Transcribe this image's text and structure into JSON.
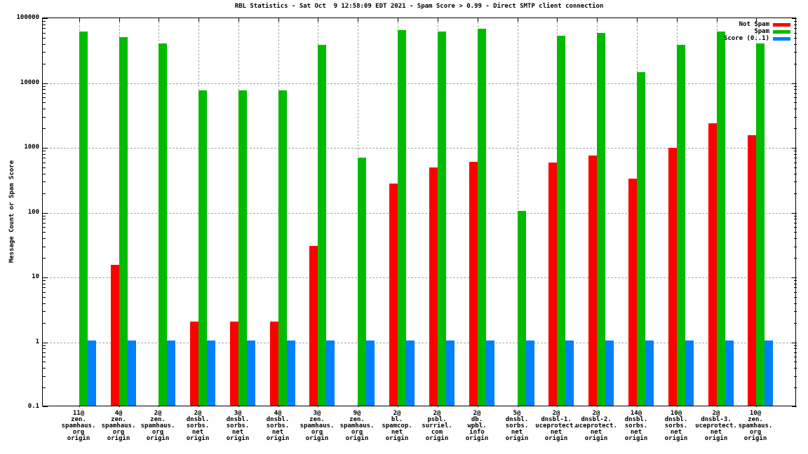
{
  "window": {
    "background": "#ffffff"
  },
  "chart_data": {
    "type": "bar",
    "title": "RBL Statistics - Sat Oct  9 12:58:09 EDT 2021 - Spam Score > 0.99 - Direct SMTP client connection",
    "ylabel": "Message Count or Spam Score",
    "xlabel": "",
    "y_scale": "log10",
    "ylim": [
      0.1,
      100000
    ],
    "ytick_labels": [
      "100000",
      "10000",
      "1000",
      "100",
      "10",
      "1",
      "0.1"
    ],
    "grid": true,
    "legend_position": "top-right-inside",
    "categories": [
      "11@ zen.spamhaus.org origin",
      "4@ zen.spamhaus.org origin",
      "2@ zen.spamhaus.org origin",
      "2@ dnsbl.sorbs.net origin",
      "3@ dnsbl.sorbs.net origin",
      "4@ dnsbl.sorbs.net origin",
      "3@ zen.spamhaus.org origin",
      "9@ zen.spamhaus.org origin",
      "2@ bl.spamcop.net origin",
      "2@ psbl.surriel.com origin",
      "2@ db.wpbl.info origin",
      "5@ dnsbl.sorbs.net origin",
      "2@ dnsbl-1.uceprotect.net origin",
      "2@ dnsbl-2.uceprotect.net origin",
      "14@ dnsbl.sorbs.net origin",
      "10@ dnsbl.sorbs.net origin",
      "2@ dnsbl-3.uceprotect.net origin",
      "10@ zen.spamhaus.org origin"
    ],
    "categories_lines": [
      [
        "11@",
        "zen.",
        "spamhaus.",
        "org",
        "origin"
      ],
      [
        "4@",
        "zen.",
        "spamhaus.",
        "org",
        "origin"
      ],
      [
        "2@",
        "zen.",
        "spamhaus.",
        "org",
        "origin"
      ],
      [
        "2@",
        "dnsbl.",
        "sorbs.",
        "net",
        "origin"
      ],
      [
        "3@",
        "dnsbl.",
        "sorbs.",
        "net",
        "origin"
      ],
      [
        "4@",
        "dnsbl.",
        "sorbs.",
        "net",
        "origin"
      ],
      [
        "3@",
        "zen.",
        "spamhaus.",
        "org",
        "origin"
      ],
      [
        "9@",
        "zen.",
        "spamhaus.",
        "org",
        "origin"
      ],
      [
        "2@",
        "bl.",
        "spamcop.",
        "net",
        "origin"
      ],
      [
        "2@",
        "psbl.",
        "surriel.",
        "com",
        "origin"
      ],
      [
        "2@",
        "db.",
        "wpbl.",
        "info",
        "origin"
      ],
      [
        "5@",
        "dnsbl.",
        "sorbs.",
        "net",
        "origin"
      ],
      [
        "2@",
        "dnsbl-1.",
        "uceprotect.",
        "net",
        "origin"
      ],
      [
        "2@",
        "dnsbl-2.",
        "uceprotect.",
        "net",
        "origin"
      ],
      [
        "14@",
        "dnsbl.",
        "sorbs.",
        "net",
        "origin"
      ],
      [
        "10@",
        "dnsbl.",
        "sorbs.",
        "net",
        "origin"
      ],
      [
        "2@",
        "dnsbl-3.",
        "uceprotect.",
        "net",
        "origin"
      ],
      [
        "10@",
        "zen.",
        "spamhaus.",
        "org",
        "origin"
      ]
    ],
    "series": [
      {
        "name": "Not Spam",
        "color": "#ff0000",
        "values": [
          null,
          15,
          null,
          2,
          2,
          2,
          29,
          null,
          270,
          470,
          580,
          null,
          560,
          730,
          320,
          950,
          2300,
          1500
        ]
      },
      {
        "name": "Spam",
        "color": "#00bb00",
        "values": [
          60000,
          48000,
          39000,
          7300,
          7300,
          7300,
          37000,
          670,
          62000,
          59000,
          65000,
          100,
          51000,
          57000,
          14000,
          37000,
          60000,
          39000
        ]
      },
      {
        "name": "Score (0..1)",
        "color": "#0080ff",
        "values": [
          1,
          1,
          1,
          1,
          1,
          1,
          1,
          1,
          1,
          1,
          1,
          1,
          1,
          1,
          1,
          1,
          1,
          1
        ]
      }
    ]
  }
}
